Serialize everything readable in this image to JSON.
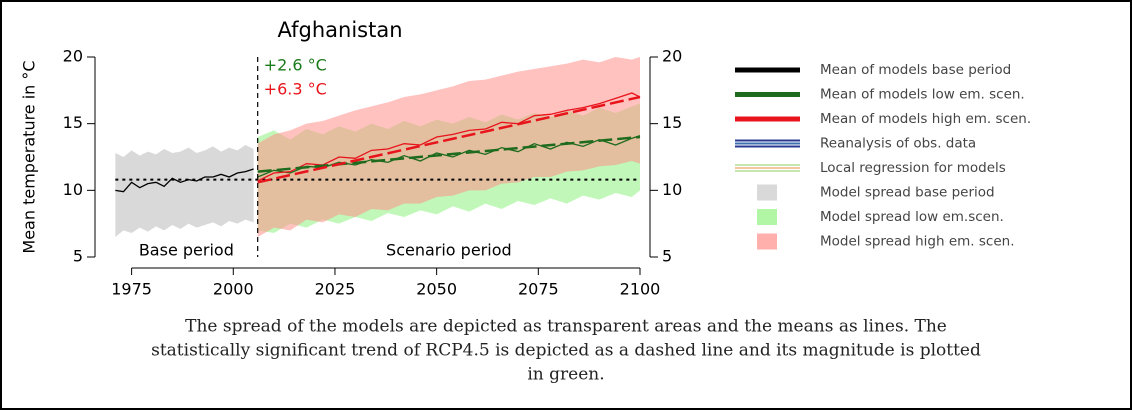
{
  "chart_data": {
    "type": "line",
    "title": "Afghanistan",
    "ylabel": "Mean temperature in °C",
    "xlim": [
      1966,
      2100
    ],
    "xticks": [
      1975,
      2000,
      2025,
      2050,
      2075,
      2100
    ],
    "ylim": [
      5,
      20
    ],
    "yticks": [
      5,
      10,
      15,
      20
    ],
    "y2ticks": [
      5,
      10,
      15,
      20
    ],
    "period_split": 2006,
    "period_labels": [
      "Base period",
      "Scenario period"
    ],
    "annotations": [
      {
        "text": "+2.6 °C",
        "color": "#1a7a1a"
      },
      {
        "text": "+6.3 °C",
        "color": "#e8141c"
      }
    ],
    "reference_line": {
      "value": 10.8,
      "x": [
        1971,
        2100
      ]
    },
    "bands": [
      {
        "name": "Model spread base period",
        "color": "#d9d9d9",
        "x": [
          1971,
          1973,
          1975,
          1977,
          1979,
          1981,
          1983,
          1985,
          1987,
          1989,
          1991,
          1993,
          1995,
          1997,
          1999,
          2001,
          2003,
          2005
        ],
        "lower": [
          6.5,
          7.0,
          6.8,
          7.2,
          6.9,
          7.3,
          7.0,
          7.4,
          7.1,
          7.5,
          7.2,
          7.4,
          7.6,
          7.3,
          7.7,
          7.5,
          7.8,
          7.6
        ],
        "upper": [
          12.8,
          12.5,
          13.0,
          12.6,
          12.9,
          12.7,
          13.1,
          12.8,
          12.9,
          13.2,
          12.8,
          13.0,
          13.3,
          12.9,
          13.2,
          13.0,
          13.4,
          13.1
        ]
      },
      {
        "name": "Model spread low em.scen.",
        "color": "#8ef27f",
        "x": [
          2006,
          2010,
          2014,
          2018,
          2022,
          2026,
          2030,
          2034,
          2038,
          2042,
          2046,
          2050,
          2054,
          2058,
          2062,
          2066,
          2070,
          2074,
          2078,
          2082,
          2086,
          2090,
          2094,
          2098,
          2100
        ],
        "lower": [
          7.0,
          6.8,
          7.5,
          7.2,
          7.8,
          7.5,
          8.0,
          7.7,
          8.3,
          8.0,
          8.5,
          8.2,
          8.8,
          8.4,
          9.0,
          8.6,
          9.2,
          8.9,
          9.4,
          9.0,
          9.6,
          9.3,
          9.8,
          9.5,
          10.0
        ],
        "upper": [
          14.0,
          14.5,
          13.8,
          14.6,
          14.2,
          14.8,
          14.4,
          15.0,
          14.6,
          15.2,
          14.8,
          15.3,
          15.0,
          15.5,
          15.1,
          15.7,
          15.3,
          15.8,
          15.5,
          16.0,
          15.6,
          16.2,
          15.8,
          16.3,
          16.5
        ]
      },
      {
        "name": "Model spread high em. scen.",
        "color": "#ff8f8a",
        "x": [
          2006,
          2010,
          2014,
          2018,
          2022,
          2026,
          2030,
          2034,
          2038,
          2042,
          2046,
          2050,
          2054,
          2058,
          2062,
          2066,
          2070,
          2074,
          2078,
          2082,
          2086,
          2090,
          2094,
          2098,
          2100
        ],
        "lower": [
          6.5,
          7.2,
          7.0,
          7.8,
          7.6,
          8.2,
          8.0,
          8.6,
          8.5,
          9.0,
          9.0,
          9.5,
          9.6,
          10.0,
          10.0,
          10.5,
          10.6,
          11.0,
          11.0,
          11.4,
          11.5,
          11.8,
          11.9,
          12.2,
          12.0
        ],
        "upper": [
          13.5,
          14.2,
          14.5,
          15.0,
          15.2,
          15.6,
          16.0,
          16.3,
          16.6,
          17.0,
          17.2,
          17.5,
          17.8,
          18.2,
          18.3,
          18.6,
          18.9,
          19.1,
          19.3,
          19.5,
          19.8,
          19.6,
          20.0,
          19.8,
          20.0
        ]
      }
    ],
    "series": [
      {
        "name": "Mean of models base period",
        "color": "#000000",
        "x": [
          1971,
          1973,
          1975,
          1977,
          1979,
          1981,
          1983,
          1985,
          1987,
          1989,
          1991,
          1993,
          1995,
          1997,
          1999,
          2001,
          2003,
          2005
        ],
        "values": [
          10.0,
          9.9,
          10.6,
          10.2,
          10.5,
          10.6,
          10.3,
          10.9,
          10.6,
          10.8,
          10.7,
          11.0,
          11.0,
          11.2,
          11.0,
          11.3,
          11.4,
          11.6
        ]
      },
      {
        "name": "Mean of models low em. scen.",
        "color": "#1e6b1e",
        "x": [
          2006,
          2010,
          2014,
          2018,
          2022,
          2026,
          2030,
          2034,
          2038,
          2042,
          2046,
          2050,
          2054,
          2058,
          2062,
          2066,
          2070,
          2074,
          2078,
          2082,
          2086,
          2090,
          2094,
          2098,
          2100
        ],
        "values": [
          11.0,
          11.5,
          11.3,
          11.8,
          11.7,
          12.1,
          11.9,
          12.3,
          12.1,
          12.6,
          12.2,
          12.8,
          12.5,
          13.0,
          12.7,
          13.2,
          12.9,
          13.5,
          13.1,
          13.6,
          13.3,
          13.8,
          13.4,
          13.9,
          14.1
        ]
      },
      {
        "name": "Mean of models high em. scen.",
        "color": "#e8141c",
        "x": [
          2006,
          2010,
          2014,
          2018,
          2022,
          2026,
          2030,
          2034,
          2038,
          2042,
          2046,
          2050,
          2054,
          2058,
          2062,
          2066,
          2070,
          2074,
          2078,
          2082,
          2086,
          2090,
          2094,
          2098,
          2100
        ],
        "values": [
          10.7,
          11.3,
          11.4,
          12.0,
          11.9,
          12.5,
          12.4,
          13.0,
          13.1,
          13.5,
          13.4,
          14.0,
          14.2,
          14.5,
          14.6,
          15.1,
          15.0,
          15.6,
          15.7,
          16.0,
          16.2,
          16.5,
          16.9,
          17.3,
          17.0
        ]
      }
    ],
    "trends": [
      {
        "color": "#1e6b1e",
        "x": [
          2006,
          2100
        ],
        "values": [
          11.4,
          14.0
        ]
      },
      {
        "color": "#e8141c",
        "x": [
          2006,
          2100
        ],
        "values": [
          10.6,
          17.0
        ]
      }
    ],
    "legend_extra": [
      {
        "name": "Reanalysis of obs. data",
        "colors": [
          "#2b3990",
          "#3a6fb0",
          "#2b3990"
        ]
      },
      {
        "name": "Local regression for models",
        "colors": [
          "#c8e6b0",
          "#f5c6a0",
          "#c8e6b0"
        ]
      }
    ],
    "caption": [
      "The spread of the models are depicted as transparent areas and the means as lines. The",
      "statistically significant trend of RCP4.5 is depicted as a dashed line and its magnitude is plotted",
      "in green."
    ]
  }
}
